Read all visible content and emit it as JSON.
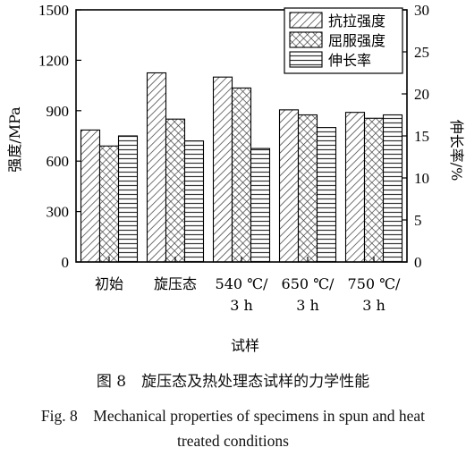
{
  "chart_data": {
    "type": "bar",
    "categories": [
      "初始",
      "旋压态",
      "540 ℃/\n3 h",
      "650 ℃/\n3 h",
      "750 ℃/\n3 h"
    ],
    "xlabel": "试样",
    "ylabel_left": "强度/MPa",
    "ylabel_right": "伸长率/%",
    "ylim_left": [
      0,
      1500
    ],
    "ylim_right": [
      0,
      30
    ],
    "yticks_left": [
      "0",
      "300",
      "600",
      "900",
      "1200",
      "1500"
    ],
    "yticks_right": [
      "0",
      "5",
      "10",
      "15",
      "20",
      "25",
      "30"
    ],
    "legend_position": "top-right",
    "series": [
      {
        "name": "抗拉强度",
        "axis": "left",
        "pattern": "diagonal-hatch",
        "values": [
          785,
          1125,
          1100,
          905,
          890
        ]
      },
      {
        "name": "屈服强度",
        "axis": "left",
        "pattern": "crosshatch",
        "values": [
          690,
          850,
          1035,
          875,
          855
        ]
      },
      {
        "name": "伸长率",
        "axis": "right",
        "pattern": "horizontal-lines",
        "values": [
          15.0,
          14.4,
          13.5,
          16.0,
          17.5
        ]
      }
    ]
  },
  "caption": {
    "cn": "图 8　旋压态及热处理态试样的力学性能",
    "en_line1": "Fig. 8　Mechanical properties of specimens in spun and heat",
    "en_line2": "treated conditions"
  }
}
